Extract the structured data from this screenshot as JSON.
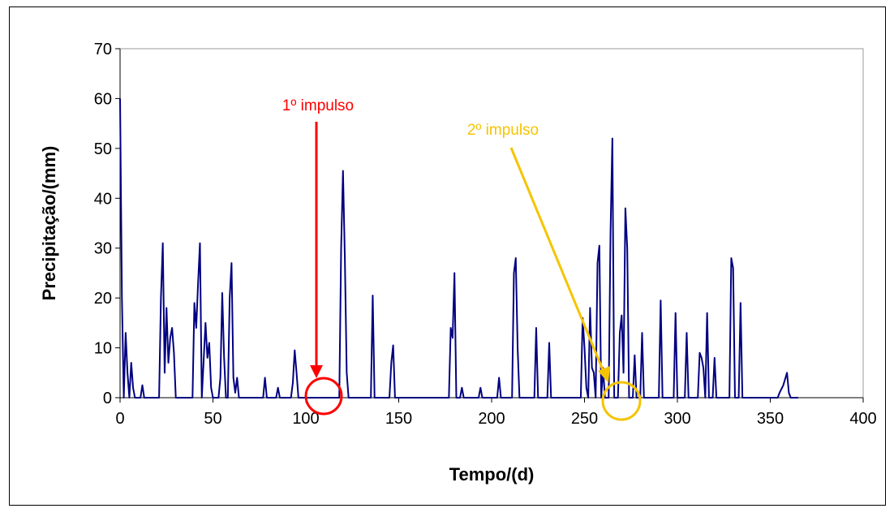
{
  "chart_data": {
    "type": "line",
    "x_label": "Tempo/(d)",
    "y_label": "Precipitação/(mm)",
    "xlim": [
      0,
      400
    ],
    "xticks": [
      0,
      50,
      100,
      150,
      200,
      250,
      300,
      350,
      400
    ],
    "ylim": [
      0,
      70
    ],
    "yticks": [
      0,
      10,
      20,
      30,
      40,
      50,
      60,
      70
    ],
    "grid": false,
    "annotations": [
      "1º impulso",
      "2º impulso"
    ],
    "series": [
      {
        "color": "#000080",
        "x": [
          0,
          1,
          2,
          3,
          4,
          5,
          6,
          7,
          8,
          11,
          12,
          13,
          21,
          22,
          23,
          24,
          25,
          26,
          27,
          28,
          29,
          30,
          39,
          40,
          41,
          42,
          43,
          44,
          46,
          47,
          48,
          49,
          50,
          53,
          54,
          55,
          56,
          57,
          58,
          59,
          60,
          61,
          62,
          63,
          64,
          77,
          78,
          79,
          84,
          85,
          86,
          92,
          93,
          94,
          95,
          96,
          118,
          119,
          120,
          121,
          122,
          123,
          135,
          136,
          137,
          145,
          146,
          147,
          148,
          177,
          178,
          179,
          180,
          181,
          183,
          184,
          185,
          193,
          194,
          195,
          203,
          204,
          205,
          211,
          212,
          213,
          214,
          215,
          223,
          224,
          225,
          230,
          231,
          232,
          248,
          249,
          250,
          251,
          252,
          253,
          254,
          255,
          256,
          257,
          258,
          259,
          260,
          261,
          263,
          264,
          265,
          266,
          268,
          269,
          270,
          271,
          272,
          273,
          274,
          276,
          277,
          278,
          280,
          281,
          282,
          290,
          291,
          292,
          298,
          299,
          300,
          304,
          305,
          306,
          311,
          312,
          313,
          314,
          315,
          316,
          317,
          319,
          320,
          321,
          328,
          329,
          330,
          331,
          333,
          334,
          335,
          354,
          355,
          357,
          359,
          360,
          361,
          365
        ],
        "values": [
          60,
          20,
          0,
          13,
          5,
          0,
          7,
          2,
          0,
          0,
          2.5,
          0,
          0,
          20,
          31,
          5,
          18,
          7,
          12,
          14,
          9,
          0,
          0,
          19,
          14,
          23,
          31,
          0,
          15,
          8,
          11,
          2,
          0,
          0,
          4,
          21,
          8,
          0,
          0,
          20,
          27,
          4,
          1,
          4,
          0,
          0,
          4,
          0,
          0,
          2,
          0,
          0,
          3,
          9.5,
          5,
          0,
          0,
          30,
          45.5,
          28,
          5,
          0,
          0,
          20.5,
          0,
          0,
          7,
          10.5,
          0,
          0,
          14,
          12,
          25,
          0,
          0,
          2,
          0,
          0,
          2,
          0,
          0,
          4,
          0,
          0,
          25,
          28,
          10,
          0,
          0,
          14,
          0,
          0,
          11,
          0,
          0,
          16,
          10,
          2,
          0,
          18,
          6,
          5,
          0,
          27,
          30.5,
          0,
          6,
          0,
          0,
          33,
          52,
          0,
          0,
          13,
          16.5,
          5,
          38,
          30,
          0,
          0,
          8.5,
          0,
          0,
          13,
          0,
          0,
          19.5,
          0,
          0,
          17,
          0,
          0,
          13,
          0,
          0,
          9,
          8,
          6,
          0,
          17,
          0,
          0,
          8,
          0,
          0,
          28,
          26,
          0,
          0,
          19,
          0,
          0,
          1,
          2.5,
          5,
          1,
          0,
          0
        ]
      }
    ]
  }
}
